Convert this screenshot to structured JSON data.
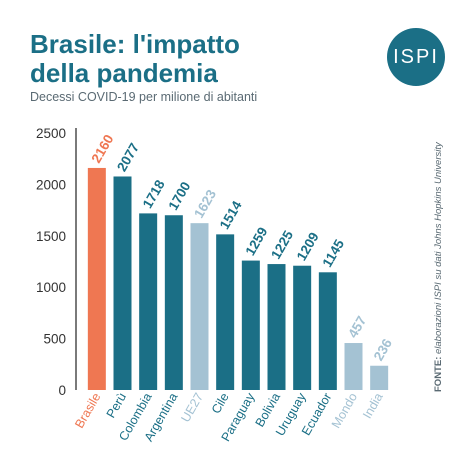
{
  "header": {
    "title_line1": "Brasile: l'impatto",
    "title_line2": "della pandemia",
    "subtitle": "Decessi COVID-19 per milione di abitanti",
    "logo_text": "ISPI"
  },
  "source": {
    "label": "FONTE:",
    "text": "elaborazioni ISPI su dati Johns Hopkins University"
  },
  "colors": {
    "highlight": "#ef7752",
    "main": "#1b6f86",
    "comparison": "#a4c2d3",
    "axis_text": "#333333"
  },
  "chart_data": {
    "type": "bar",
    "categories": [
      "Brasile",
      "Perù",
      "Colombia",
      "Argentina",
      "UE27",
      "Cile",
      "Paraguay",
      "Bolivia",
      "Uruguay",
      "Ecuador",
      "Mondo",
      "India"
    ],
    "values": [
      2160,
      2077,
      1718,
      1700,
      1623,
      1514,
      1259,
      1225,
      1209,
      1145,
      457,
      236
    ],
    "bar_groups": [
      "highlight",
      "main",
      "main",
      "main",
      "comparison",
      "main",
      "main",
      "main",
      "main",
      "main",
      "comparison",
      "comparison"
    ],
    "yticks": [
      0,
      500,
      1000,
      1500,
      2000,
      2500
    ],
    "ylim": [
      0,
      2500
    ],
    "title": "",
    "xlabel": "",
    "ylabel": "",
    "grid": false,
    "legend": "none"
  }
}
